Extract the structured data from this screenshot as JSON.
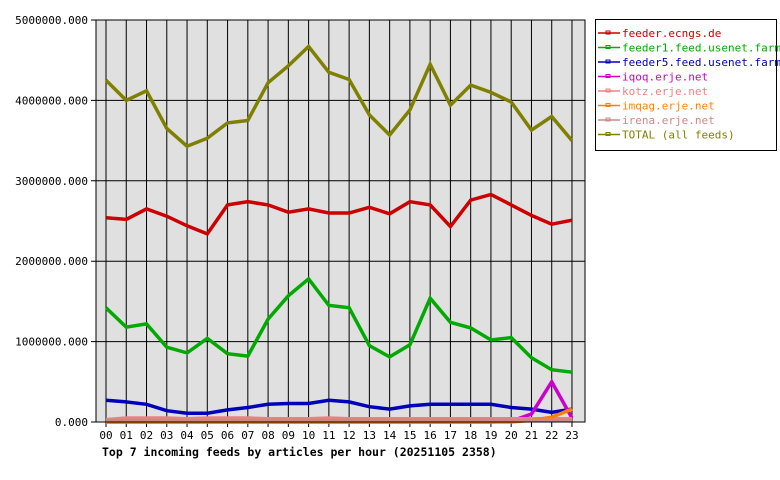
{
  "chart_data": {
    "type": "line",
    "title": "Top 7 incoming feeds by articles per hour (20251105 2358)",
    "xlabel": "",
    "ylabel": "",
    "ylim": [
      0,
      5000000
    ],
    "y_ticks": [
      "0.000",
      "1000000.000",
      "2000000.000",
      "3000000.000",
      "4000000.000",
      "5000000.000"
    ],
    "y_tick_values": [
      0,
      1000000,
      2000000,
      3000000,
      4000000,
      5000000
    ],
    "grid": true,
    "legend_position": "right",
    "categories": [
      "00",
      "01",
      "02",
      "03",
      "04",
      "05",
      "06",
      "07",
      "08",
      "09",
      "10",
      "11",
      "12",
      "13",
      "14",
      "15",
      "16",
      "17",
      "18",
      "19",
      "20",
      "21",
      "22",
      "23"
    ],
    "series": [
      {
        "name": "feeder.ecngs.de",
        "color": "#cc0000",
        "values": [
          2540000,
          2520000,
          2650000,
          2560000,
          2440000,
          2340000,
          2700000,
          2740000,
          2700000,
          2610000,
          2650000,
          2600000,
          2600000,
          2670000,
          2590000,
          2740000,
          2700000,
          2430000,
          2760000,
          2830000,
          2700000,
          2570000,
          2460000,
          2510000
        ]
      },
      {
        "name": "feeder1.feed.usenet.farm",
        "color": "#00aa00",
        "values": [
          1420000,
          1180000,
          1220000,
          930000,
          860000,
          1040000,
          850000,
          820000,
          1280000,
          1570000,
          1780000,
          1450000,
          1420000,
          950000,
          810000,
          960000,
          1540000,
          1240000,
          1170000,
          1020000,
          1050000,
          800000,
          650000,
          620000
        ]
      },
      {
        "name": "feeder5.feed.usenet.farm",
        "color": "#0000bb",
        "values": [
          270000,
          250000,
          220000,
          140000,
          110000,
          110000,
          150000,
          180000,
          220000,
          230000,
          230000,
          270000,
          250000,
          190000,
          160000,
          200000,
          220000,
          220000,
          220000,
          220000,
          180000,
          160000,
          120000,
          160000
        ]
      },
      {
        "name": "iqoq.erje.net",
        "color": "#cc00cc",
        "values": [
          0,
          0,
          0,
          0,
          0,
          0,
          0,
          0,
          0,
          0,
          0,
          0,
          0,
          0,
          0,
          0,
          0,
          0,
          0,
          0,
          10000,
          100000,
          500000,
          50000
        ]
      },
      {
        "name": "kotz.erje.net",
        "color": "#f08080",
        "values": [
          30000,
          50000,
          50000,
          50000,
          40000,
          50000,
          50000,
          50000,
          40000,
          40000,
          40000,
          50000,
          40000,
          40000,
          40000,
          40000,
          40000,
          40000,
          40000,
          40000,
          40000,
          40000,
          40000,
          40000
        ]
      },
      {
        "name": "imqag.erje.net",
        "color": "#ff8000",
        "values": [
          0,
          0,
          0,
          0,
          0,
          0,
          0,
          0,
          0,
          0,
          0,
          0,
          0,
          0,
          0,
          0,
          0,
          0,
          0,
          0,
          0,
          20000,
          60000,
          160000
        ]
      },
      {
        "name": "irena.erje.net",
        "color": "#cc8888",
        "values": [
          20000,
          20000,
          20000,
          20000,
          20000,
          20000,
          20000,
          20000,
          20000,
          20000,
          20000,
          20000,
          20000,
          20000,
          20000,
          20000,
          20000,
          20000,
          20000,
          20000,
          20000,
          20000,
          20000,
          20000
        ]
      },
      {
        "name": "TOTAL (all feeds)",
        "color": "#808000",
        "values": [
          4250000,
          4000000,
          4120000,
          3650000,
          3430000,
          3530000,
          3720000,
          3750000,
          4220000,
          4430000,
          4670000,
          4350000,
          4260000,
          3820000,
          3570000,
          3880000,
          4450000,
          3940000,
          4190000,
          4100000,
          3980000,
          3630000,
          3800000,
          3500000
        ]
      }
    ]
  },
  "legend": {
    "items": [
      {
        "label": "feeder.ecngs.de",
        "color": "#cc0000"
      },
      {
        "label": "feeder1.feed.usenet.farm",
        "color": "#00aa00"
      },
      {
        "label": "feeder5.feed.usenet.farm",
        "color": "#0000bb"
      },
      {
        "label": "iqoq.erje.net",
        "color": "#cc00cc"
      },
      {
        "label": "kotz.erje.net",
        "color": "#f08080"
      },
      {
        "label": "imqag.erje.net",
        "color": "#ff8000"
      },
      {
        "label": "irena.erje.net",
        "color": "#cc8888"
      },
      {
        "label": "TOTAL (all feeds)",
        "color": "#808000"
      }
    ]
  },
  "colors": {
    "plot_background": "#e0e0e0",
    "grid": "#000000",
    "page_background": "#ffffff"
  }
}
